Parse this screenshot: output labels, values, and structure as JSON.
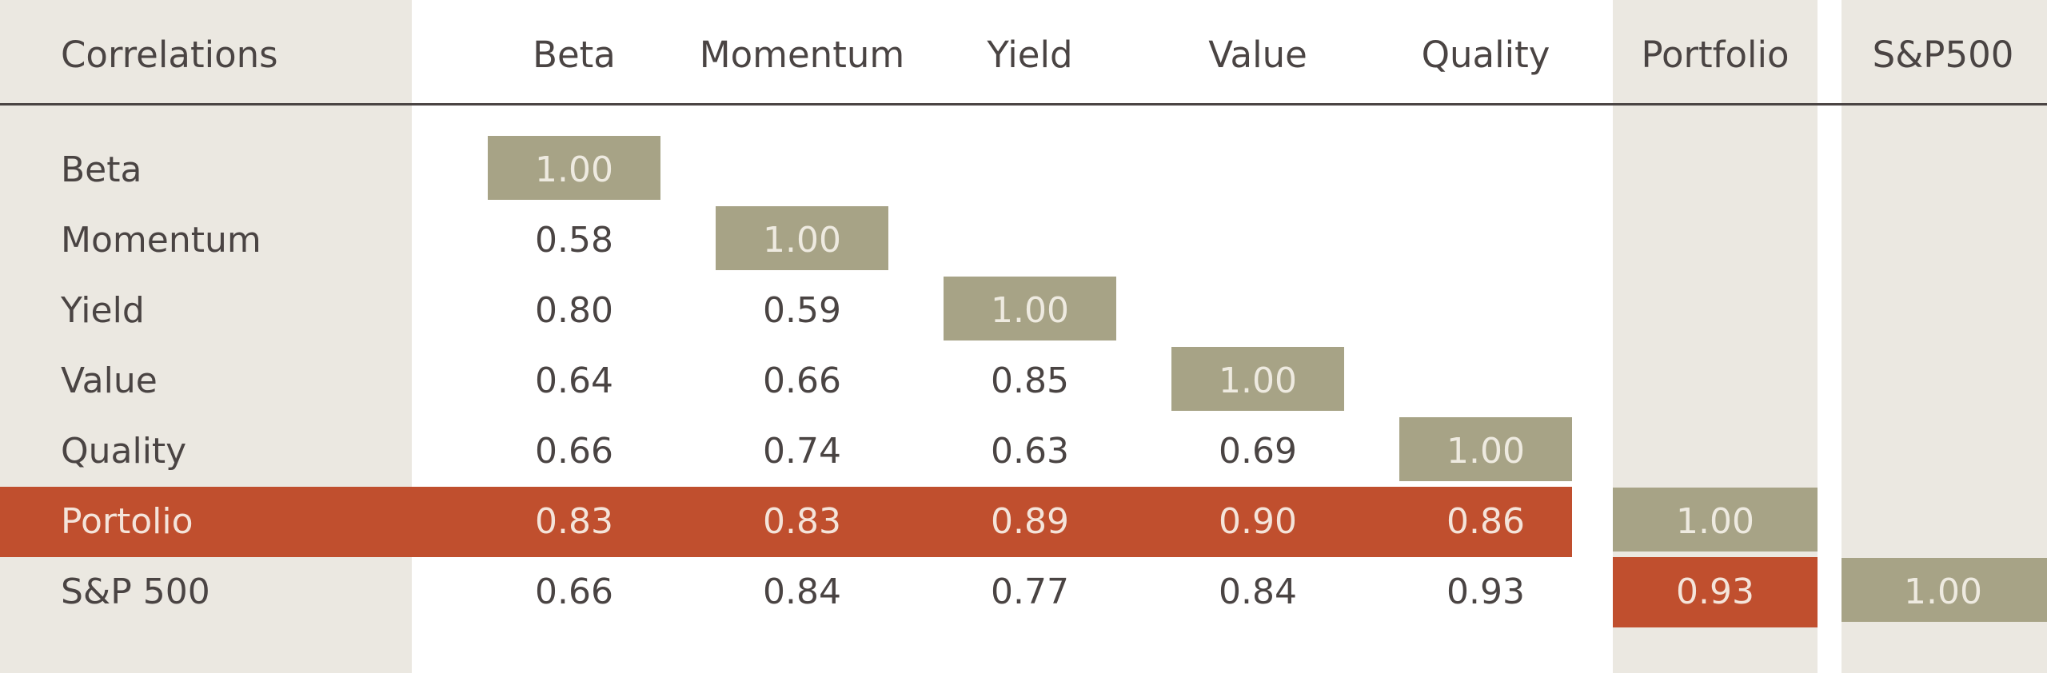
{
  "colors": {
    "beige": "#ebe8e1",
    "olive": "#a7a386",
    "red": "#c04f2e",
    "text": "#4a4443",
    "rule": "#4a4443"
  },
  "chart_data": {
    "type": "table",
    "corner_label": "Correlations",
    "columns": [
      "Beta",
      "Momentum",
      "Yield",
      "Value",
      "Quality",
      "Portfolio",
      "S&P500"
    ],
    "rows": [
      {
        "label": "Beta",
        "values": [
          "1.00",
          null,
          null,
          null,
          null,
          null,
          null
        ]
      },
      {
        "label": "Momentum",
        "values": [
          "0.58",
          "1.00",
          null,
          null,
          null,
          null,
          null
        ]
      },
      {
        "label": "Yield",
        "values": [
          "0.80",
          "0.59",
          "1.00",
          null,
          null,
          null,
          null
        ]
      },
      {
        "label": "Value",
        "values": [
          "0.64",
          "0.66",
          "0.85",
          "1.00",
          null,
          null,
          null
        ]
      },
      {
        "label": "Quality",
        "values": [
          "0.66",
          "0.74",
          "0.63",
          "0.69",
          "1.00",
          null,
          null
        ]
      },
      {
        "label": "Portolio",
        "values": [
          "0.83",
          "0.83",
          "0.89",
          "0.90",
          "0.86",
          "1.00",
          null
        ]
      },
      {
        "label": "S&P 500",
        "values": [
          "0.66",
          "0.84",
          "0.77",
          "0.84",
          "0.93",
          "0.93",
          "1.00"
        ]
      }
    ],
    "highlighted_row": "Portolio",
    "highlighted_cell": {
      "row": "S&P 500",
      "column": "Portfolio"
    }
  }
}
